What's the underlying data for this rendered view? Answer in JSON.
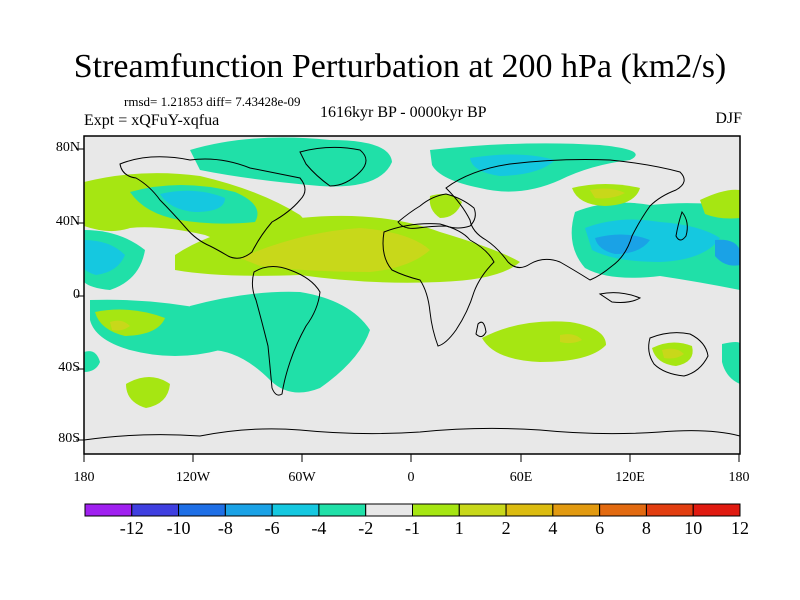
{
  "title": "Streamfunction Perturbation at 200 hPa (km2/s)",
  "stats": "rmsd= 1.21853 diff= 7.43428e-09",
  "expt": "Expt = xQFuY-xqfua",
  "period": "1616kyr BP - 0000kyr BP",
  "season": "DJF",
  "lat_labels": [
    "80N",
    "40N",
    "0",
    "40S",
    "80S"
  ],
  "lon_labels": [
    "180",
    "120W",
    "60W",
    "0",
    "60E",
    "120E",
    "180"
  ],
  "colorbar": {
    "labels": [
      "-12",
      "-10",
      "-8",
      "-6",
      "-4",
      "-2",
      "-1",
      "1",
      "2",
      "4",
      "6",
      "8",
      "10",
      "12"
    ],
    "colors": [
      "#a020f0",
      "#3f3fe0",
      "#1e6fe6",
      "#1aa2e6",
      "#15c8e0",
      "#20e0a8",
      "#e8e8e8",
      "#a6e612",
      "#c8d81a",
      "#dcbc10",
      "#e29a10",
      "#e26a10",
      "#e23e10",
      "#e01a10"
    ]
  },
  "colors": {
    "background": "#e8e8e8",
    "green_pos": "#a6e612",
    "olive": "#c8d81a",
    "orange": "#dcbc10",
    "teal": "#20e0a8",
    "cyan": "#15c8e0",
    "blue": "#1aa2e6"
  }
}
